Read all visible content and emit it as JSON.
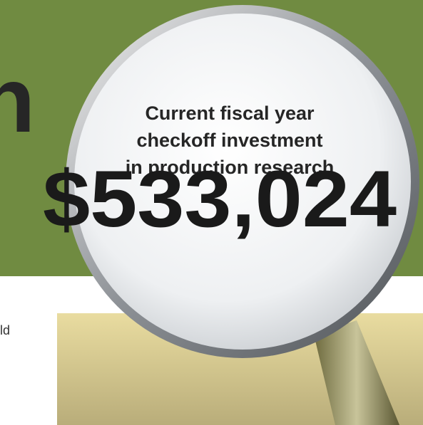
{
  "heading_fragment": "n",
  "body_fragment": "ld",
  "callout": {
    "lines": [
      "Current fiscal year",
      "checkoff investment",
      "in production research"
    ],
    "amount": "$533,024"
  }
}
